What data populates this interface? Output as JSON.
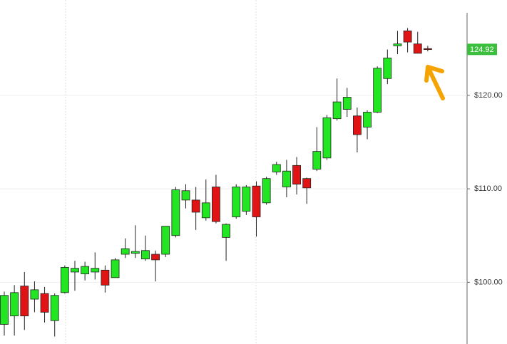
{
  "chart_data": {
    "type": "candlestick",
    "up_color": "#22e622",
    "down_color": "#e01414",
    "ylim": [
      93.4,
      130.2
    ],
    "yticks": [
      {
        "value": 100,
        "label": "$100.00"
      },
      {
        "value": 110,
        "label": "$110.00"
      },
      {
        "value": 120,
        "label": "$120.00"
      }
    ],
    "grid": true,
    "last_price": 124.92,
    "open": [
      95.5,
      96.4,
      99.6,
      98.2,
      98.8,
      95.9,
      98.9,
      101.1,
      100.9,
      101.1,
      101.3,
      100.5,
      103.0,
      103.1,
      102.5,
      103.0,
      103.0,
      105.0,
      108.8,
      108.8,
      106.9,
      110.2,
      104.8,
      107.0,
      107.6,
      110.3,
      108.5,
      111.8,
      110.2,
      112.5,
      111.1,
      112.1,
      113.3,
      117.5,
      118.5,
      117.8,
      116.6,
      118.2,
      121.8,
      125.3,
      126.9,
      125.5,
      125.0
    ],
    "high": [
      99.0,
      99.7,
      101.1,
      100.1,
      99.5,
      98.8,
      101.8,
      102.3,
      102.2,
      103.2,
      101.8,
      102.6,
      104.7,
      106.1,
      105.0,
      103.4,
      106.0,
      110.2,
      110.5,
      110.2,
      111.0,
      111.5,
      106.3,
      110.5,
      110.4,
      110.8,
      111.3,
      112.9,
      113.1,
      113.4,
      111.2,
      116.6,
      117.9,
      121.8,
      120.8,
      118.7,
      118.4,
      123.1,
      124.9,
      126.9,
      127.2,
      126.8,
      125.3
    ],
    "low": [
      94.3,
      94.3,
      94.9,
      96.8,
      95.7,
      94.2,
      98.8,
      99.1,
      100.2,
      100.3,
      98.9,
      100.5,
      102.6,
      102.6,
      102.3,
      100.1,
      102.7,
      104.8,
      107.9,
      105.6,
      106.6,
      106.3,
      102.3,
      106.8,
      107.2,
      104.9,
      108.3,
      111.5,
      109.1,
      109.4,
      108.4,
      111.9,
      113.1,
      117.3,
      117.7,
      113.9,
      115.3,
      118.1,
      121.2,
      124.4,
      124.6,
      124.5,
      124.7
    ],
    "close": [
      98.6,
      98.9,
      96.4,
      99.2,
      96.8,
      98.6,
      101.6,
      101.5,
      101.7,
      101.5,
      99.7,
      102.4,
      103.6,
      103.3,
      103.4,
      102.4,
      106.0,
      109.9,
      109.8,
      107.5,
      108.5,
      106.5,
      106.2,
      110.2,
      110.2,
      107.0,
      111.1,
      112.6,
      111.9,
      110.5,
      110.1,
      114.0,
      117.6,
      119.3,
      119.8,
      115.8,
      118.2,
      122.9,
      124.0,
      125.5,
      125.7,
      124.5,
      124.9
    ]
  }
}
